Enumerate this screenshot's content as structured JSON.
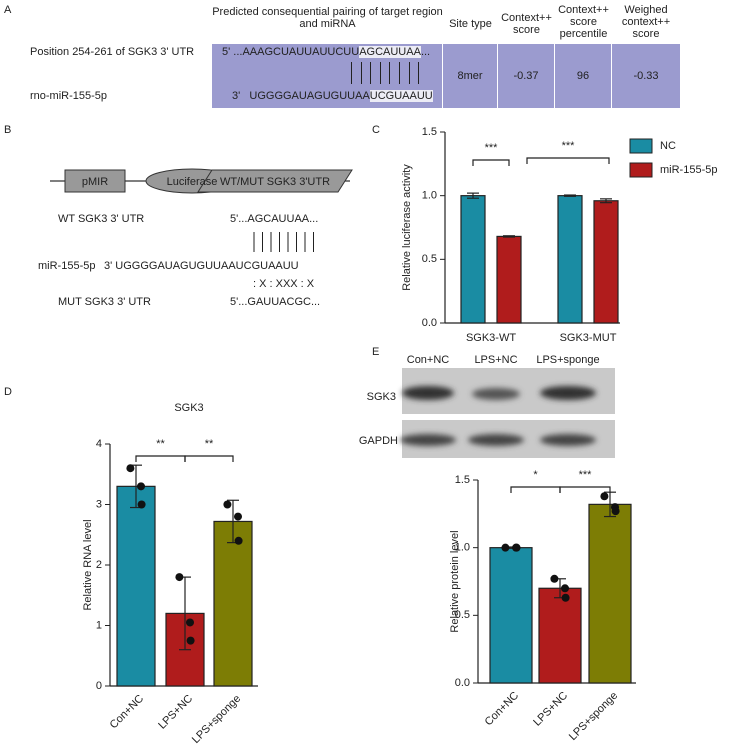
{
  "panel_labels": [
    "A",
    "B",
    "C",
    "D",
    "E"
  ],
  "table": {
    "headers": [
      "Predicted consequential pairing of target region and miRNA",
      "Site type",
      "Context++ score",
      "Context++ score percentile",
      "Weighed context++ score"
    ],
    "row_labels": [
      "Position 254-261 of SGK3 3' UTR",
      "rno-miR-155-5p"
    ],
    "target": {
      "prefix": "5' ...AAAGCUAUUAUUCUU",
      "site": "AGCAUUAA",
      "suffix": "..."
    },
    "mirna": {
      "prefix": "3'   UGGGGAUAGUGUUAA",
      "site": "UCGUAAUU"
    },
    "cells": [
      "8mer",
      "-0.37",
      "96",
      "-0.33"
    ]
  },
  "diagram": {
    "elements": [
      "pMIR",
      "Luciferase",
      "WT/MUT SGK3 3'UTR"
    ],
    "wt_label": "WT SGK3 3' UTR",
    "wt_seq": "5'...AGCAUUAA...",
    "mirna_label": "miR-155-5p",
    "mirna_seq": "3' UGGGGAUAGUGUUAAUCGUAAUU",
    "mismatch": ": X : XXX : X",
    "mut_label": "MUT SGK3 3' UTR",
    "mut_seq": "5'...GAUUACGC..."
  },
  "blot": {
    "lanes": [
      "Con+NC",
      "LPS+NC",
      "LPS+sponge"
    ],
    "rows": [
      "SGK3",
      "GAPDH"
    ]
  },
  "chart_data": [
    {
      "type": "bar",
      "ylabel": "Relative luciferase activity",
      "categories": [
        "SGK3-WT",
        "SGK3-MUT"
      ],
      "series": [
        {
          "name": "NC",
          "color": "#1a8ca3",
          "values": [
            1.0,
            1.0
          ],
          "errors": [
            0.02,
            0.005
          ]
        },
        {
          "name": "miR-155-5p",
          "color": "#b01c1c",
          "values": [
            0.68,
            0.96
          ],
          "errors": [
            0.005,
            0.015
          ]
        }
      ],
      "ylim": [
        0,
        1.5
      ],
      "yticks": [
        {
          "value": 0,
          "label": "0.0"
        },
        {
          "value": 0.5,
          "label": "0.5"
        },
        {
          "value": 1,
          "label": "1.0"
        },
        {
          "value": 1.5,
          "label": "1.5"
        }
      ],
      "annotations": [
        "***",
        "***"
      ],
      "legend": "right"
    },
    {
      "type": "bar",
      "title": "SGK3",
      "ylabel": "Relative RNA level",
      "categories": [
        "Con+NC",
        "LPS+NC",
        "LPS+sponge"
      ],
      "colors": [
        "#1a8ca3",
        "#b01c1c",
        "#7d7d05"
      ],
      "values": [
        3.3,
        1.2,
        2.72
      ],
      "errors": [
        0.35,
        0.6,
        0.35
      ],
      "points": [
        [
          3.6,
          3.3,
          3.0
        ],
        [
          1.8,
          1.05,
          0.75
        ],
        [
          3.0,
          2.8,
          2.4
        ]
      ],
      "ylim": [
        0,
        4
      ],
      "yticks": [
        0,
        1,
        2,
        3,
        4
      ],
      "annotations": [
        "**",
        "**"
      ]
    },
    {
      "type": "bar",
      "ylabel": "Relative protein level",
      "categories": [
        "Con+NC",
        "LPS+NC",
        "LPS+sponge"
      ],
      "colors": [
        "#1a8ca3",
        "#b01c1c",
        "#7d7d05"
      ],
      "values": [
        1.0,
        0.7,
        1.32
      ],
      "errors": [
        0.005,
        0.07,
        0.09
      ],
      "points": [
        [
          1,
          1,
          1
        ],
        [
          0.77,
          0.7,
          0.63
        ],
        [
          1.38,
          1.3,
          1.27
        ]
      ],
      "ylim": [
        0,
        1.5
      ],
      "yticks": [
        {
          "value": 0,
          "label": "0.0"
        },
        {
          "value": 0.5,
          "label": "0.5"
        },
        {
          "value": 1,
          "label": "1.0"
        },
        {
          "value": 1.5,
          "label": "1.5"
        }
      ],
      "annotations": [
        "*",
        "***"
      ]
    }
  ]
}
